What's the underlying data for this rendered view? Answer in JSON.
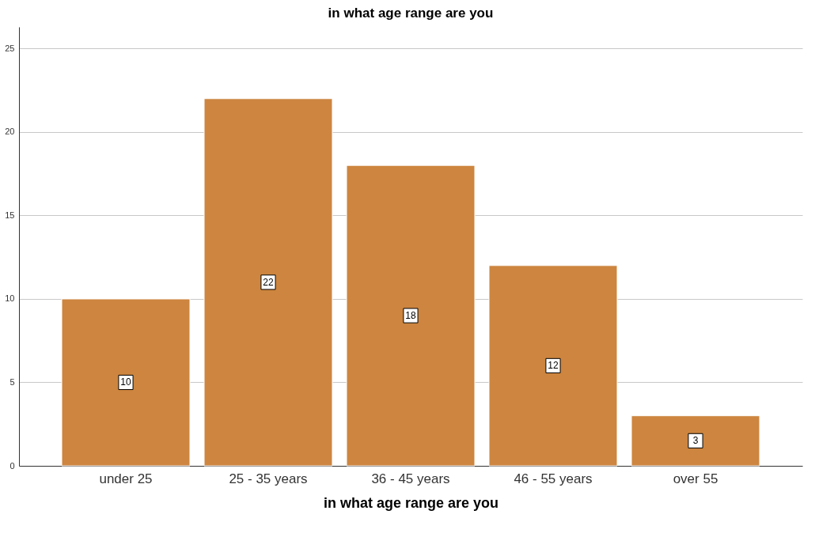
{
  "chart_data": {
    "type": "bar",
    "title": "in what age range are you",
    "xlabel": "in what age range are you",
    "categories": [
      "under 25",
      "25 - 35 years",
      "36 - 45 years",
      "46 - 55 years",
      "over 55"
    ],
    "values": [
      10,
      22,
      18,
      12,
      3
    ],
    "color": "#cd853f",
    "ylim": [
      0,
      26.3
    ],
    "yticks": [
      0,
      5,
      10,
      15,
      20,
      25
    ],
    "grid": "y",
    "data_labels": true
  }
}
